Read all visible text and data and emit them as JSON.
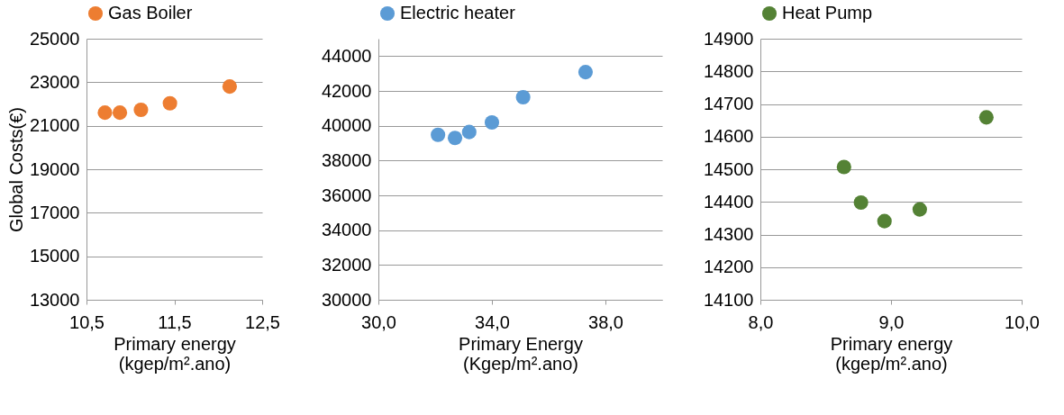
{
  "chart_data": [
    {
      "type": "scatter",
      "ylabel": "Global  Costs(€)",
      "xlabel": "Primary energy\n(kgep/m².ano)",
      "xlim": [
        10.5,
        12.5
      ],
      "xticks": [
        {
          "value": 10.5,
          "label": "10,5"
        },
        {
          "value": 11.5,
          "label": "11,5"
        },
        {
          "value": 12.5,
          "label": "12,5"
        }
      ],
      "ylim": [
        13000,
        25000
      ],
      "yticks": [
        13000,
        15000,
        17000,
        19000,
        21000,
        23000,
        25000
      ],
      "grid": "y",
      "legend": "top",
      "marker": "circle",
      "series": [
        {
          "name": "Gas Boiler",
          "color": "#ed7d31",
          "x": [
            10.71,
            10.88,
            11.12,
            11.45,
            12.13
          ],
          "values": [
            21600,
            21600,
            21730,
            22030,
            22800
          ]
        }
      ]
    },
    {
      "type": "scatter",
      "xlabel": "Primary Energy\n(Kgep/m².ano)",
      "xlim": [
        30,
        40
      ],
      "xticks": [
        {
          "value": 30,
          "label": "30,0"
        },
        {
          "value": 34,
          "label": "34,0"
        },
        {
          "value": 38,
          "label": "38,0"
        }
      ],
      "ylim": [
        30000,
        45000
      ],
      "yticks": [
        30000,
        32000,
        34000,
        36000,
        38000,
        40000,
        42000,
        44000
      ],
      "grid": "y",
      "legend": "top",
      "marker": "circle",
      "series": [
        {
          "name": "Electric heater",
          "color": "#5b9bd5",
          "x": [
            32.1,
            32.7,
            33.2,
            34.0,
            35.1,
            37.3
          ],
          "values": [
            39480,
            39300,
            39640,
            40190,
            41640,
            43080
          ]
        }
      ]
    },
    {
      "type": "scatter",
      "xlabel": "Primary energy\n(kgep/m².ano)",
      "xlim": [
        8,
        10
      ],
      "xticks": [
        {
          "value": 8,
          "label": "8,0"
        },
        {
          "value": 9,
          "label": "9,0"
        },
        {
          "value": 10,
          "label": "10,0"
        }
      ],
      "ylim": [
        14100,
        14900
      ],
      "yticks": [
        14100,
        14200,
        14300,
        14400,
        14500,
        14600,
        14700,
        14800,
        14900
      ],
      "grid": "y",
      "legend": "top",
      "marker": "circle",
      "series": [
        {
          "name": "Heat Pump",
          "color": "#548235",
          "x": [
            8.64,
            8.77,
            8.95,
            9.22,
            9.73
          ],
          "values": [
            14507,
            14398,
            14341,
            14377,
            14659
          ]
        }
      ]
    }
  ]
}
